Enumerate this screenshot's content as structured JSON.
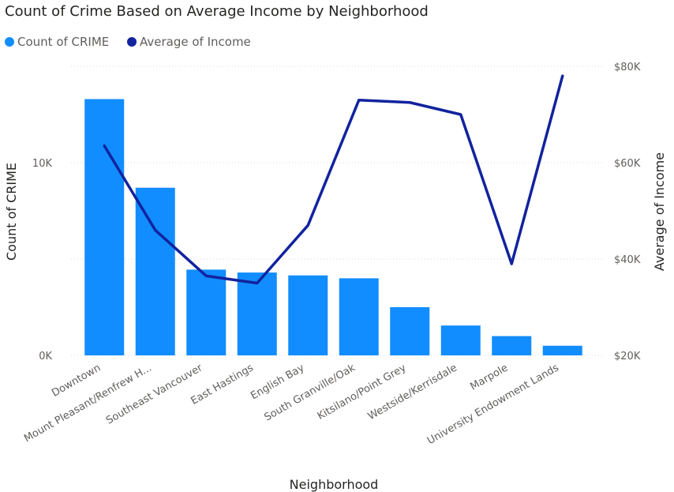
{
  "chart_data": {
    "type": "bar",
    "title": "Count of Crime Based on Average Income by Neighborhood",
    "legend": [
      {
        "label": "Count of CRIME",
        "color": "#118DFF"
      },
      {
        "label": "Average of Income",
        "color": "#12239E"
      }
    ],
    "legend_position": "top-left",
    "xlabel": "Neighborhood",
    "ylabel": "Count of CRIME",
    "y2label": "Average of Income",
    "categories": [
      "Downtown",
      "Mount Pleasant/Renfrew H...",
      "Southeast Vancouver",
      "East Hastings",
      "English Bay",
      "South Granville/Oak",
      "Kitsilano/Point Grey",
      "Westside/Kerrisdale",
      "Marpole",
      "University Endowment Lands"
    ],
    "series": [
      {
        "name": "Count of CRIME",
        "type": "bar",
        "axis": "left",
        "color": "#118DFF",
        "values": [
          13300,
          8700,
          4450,
          4300,
          4150,
          4000,
          2500,
          1550,
          1000,
          500
        ]
      },
      {
        "name": "Average of Income",
        "type": "line",
        "axis": "right",
        "color": "#12239E",
        "values": [
          63500,
          46000,
          36500,
          35000,
          47000,
          73000,
          72500,
          70000,
          39000,
          78000
        ]
      }
    ],
    "ylim": [
      0,
      15000
    ],
    "y_ticks": [
      {
        "value": 0,
        "label": "0K"
      },
      {
        "value": 10000,
        "label": "10K"
      }
    ],
    "y2lim": [
      20000,
      80000
    ],
    "y2_ticks": [
      {
        "value": 20000,
        "label": "$20K"
      },
      {
        "value": 40000,
        "label": "$40K"
      },
      {
        "value": 60000,
        "label": "$60K"
      },
      {
        "value": 80000,
        "label": "$80K"
      }
    ],
    "grid": true
  }
}
